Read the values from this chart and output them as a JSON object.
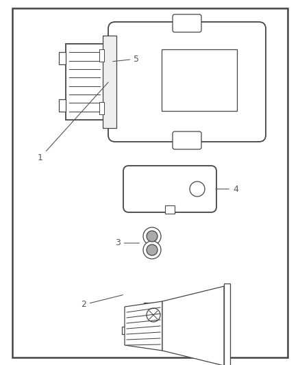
{
  "bg_color": "#ffffff",
  "border_color": "#444444",
  "line_color": "#444444",
  "label_color": "#555555",
  "figsize": [
    4.38,
    5.33
  ],
  "dpi": 100
}
